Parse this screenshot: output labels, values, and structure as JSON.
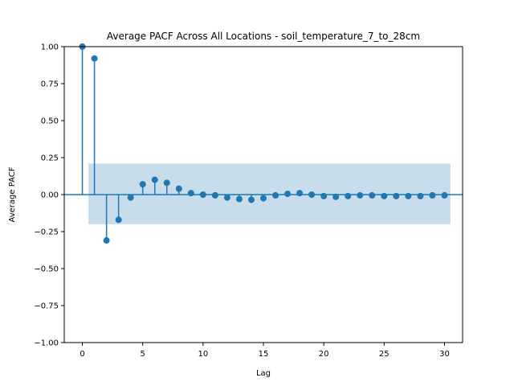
{
  "chart_data": {
    "type": "scatter",
    "subtype": "stem",
    "title": "Average PACF Across All Locations - soil_temperature_7_to_28cm",
    "xlabel": "Lag",
    "ylabel": "Average PACF",
    "xlim": [
      -1.5,
      31.5
    ],
    "ylim": [
      -1.0,
      1.0
    ],
    "xticks": [
      0,
      5,
      10,
      15,
      20,
      25,
      30
    ],
    "yticks": [
      -1.0,
      -0.75,
      -0.5,
      -0.25,
      0.0,
      0.25,
      0.5,
      0.75,
      1.0
    ],
    "ytick_labels": [
      "−1.00",
      "−0.75",
      "−0.50",
      "−0.25",
      "0.00",
      "0.25",
      "0.50",
      "0.75",
      "1.00"
    ],
    "confidence_band": {
      "x_range": [
        0.5,
        30.5
      ],
      "upper": 0.21,
      "lower": -0.2
    },
    "lags": [
      0,
      1,
      2,
      3,
      4,
      5,
      6,
      7,
      8,
      9,
      10,
      11,
      12,
      13,
      14,
      15,
      16,
      17,
      18,
      19,
      20,
      21,
      22,
      23,
      24,
      25,
      26,
      27,
      28,
      29,
      30
    ],
    "values": [
      1.0,
      0.92,
      -0.31,
      -0.17,
      -0.02,
      0.07,
      0.1,
      0.08,
      0.04,
      0.01,
      0.0,
      -0.005,
      -0.02,
      -0.03,
      -0.035,
      -0.025,
      -0.005,
      0.005,
      0.01,
      0.0,
      -0.01,
      -0.015,
      -0.01,
      -0.005,
      -0.005,
      -0.01,
      -0.01,
      -0.01,
      -0.01,
      -0.005,
      -0.005
    ],
    "grid": false,
    "colors": {
      "series": "#1f77b4",
      "band": "#1f77b4"
    }
  }
}
